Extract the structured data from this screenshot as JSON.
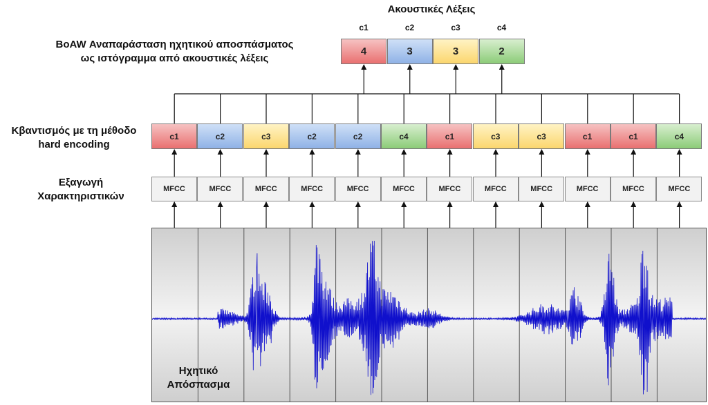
{
  "labels": {
    "histogram_title": "Ακουστικές Λέξεις",
    "boaw_line1": "BoAW Αναπαράσταση ηχητικού αποσπάσματος",
    "boaw_line2": "ως ιστόγραμμα από ακουστικές λέξεις",
    "quant_line1": "Κβαντισμός με τη μέθοδο",
    "quant_line2": "hard encoding",
    "feat_line1": "Εξαγωγή",
    "feat_line2": "Χαρακτηριστικών",
    "audio_line1": "Ηχητικό",
    "audio_line2": "Απόσπασμα"
  },
  "histogram": [
    {
      "word": "c1",
      "count": "4",
      "color": "red"
    },
    {
      "word": "c2",
      "count": "3",
      "color": "blue"
    },
    {
      "word": "c3",
      "count": "3",
      "color": "yellow"
    },
    {
      "word": "c4",
      "count": "2",
      "color": "green"
    }
  ],
  "quantized": [
    {
      "word": "c1",
      "color": "red"
    },
    {
      "word": "c2",
      "color": "blue"
    },
    {
      "word": "c3",
      "color": "yellow"
    },
    {
      "word": "c2",
      "color": "blue"
    },
    {
      "word": "c2",
      "color": "blue"
    },
    {
      "word": "c4",
      "color": "green"
    },
    {
      "word": "c1",
      "color": "red"
    },
    {
      "word": "c3",
      "color": "yellow"
    },
    {
      "word": "c3",
      "color": "yellow"
    },
    {
      "word": "c1",
      "color": "red"
    },
    {
      "word": "c1",
      "color": "red"
    },
    {
      "word": "c4",
      "color": "green"
    }
  ],
  "features": [
    "MFCC",
    "MFCC",
    "MFCC",
    "MFCC",
    "MFCC",
    "MFCC",
    "MFCC",
    "MFCC",
    "MFCC",
    "MFCC",
    "MFCC",
    "MFCC"
  ],
  "colors": {
    "red": "#e97070",
    "blue": "#8fb2e6",
    "yellow": "#fbd66e",
    "green": "#8ccc78",
    "waveform": "#1010cc"
  }
}
